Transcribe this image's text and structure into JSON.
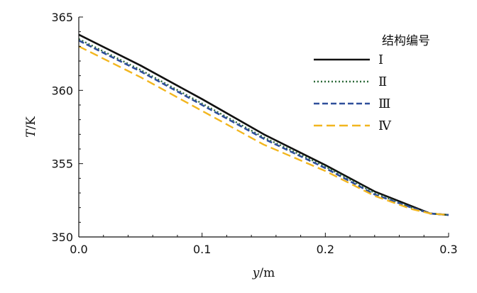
{
  "chart_data": {
    "type": "line",
    "xlabel_var": "y",
    "xlabel_unit": "/m",
    "ylabel_var": "T",
    "ylabel_unit": "/K",
    "xlim": [
      0.0,
      0.3
    ],
    "ylim": [
      350,
      365
    ],
    "x_ticks": [
      0.0,
      0.1,
      0.2,
      0.3
    ],
    "x_tick_labels": [
      "0.0",
      "0.1",
      "0.2",
      "0.3"
    ],
    "y_ticks": [
      350,
      355,
      360,
      365
    ],
    "y_tick_labels": [
      "350",
      "355",
      "360",
      "365"
    ],
    "grid": false,
    "legend": {
      "title": "结构编号",
      "placement": "top-right"
    },
    "series": [
      {
        "name": "Ⅰ",
        "color": "#111111",
        "dash": "solid",
        "x": [
          0.0,
          0.05,
          0.1,
          0.15,
          0.2,
          0.24,
          0.27,
          0.285,
          0.3
        ],
        "y": [
          363.8,
          361.7,
          359.4,
          357.0,
          354.9,
          353.1,
          352.1,
          351.6,
          351.5
        ]
      },
      {
        "name": "Ⅱ",
        "color": "#2e6b3a",
        "dash": "dotted",
        "x": [
          0.0,
          0.05,
          0.1,
          0.15,
          0.2,
          0.24,
          0.27,
          0.285,
          0.3
        ],
        "y": [
          363.5,
          361.4,
          359.1,
          356.8,
          354.8,
          353.0,
          352.0,
          351.6,
          351.5
        ]
      },
      {
        "name": "Ⅲ",
        "color": "#2f4f9a",
        "dash": "dashed",
        "x": [
          0.0,
          0.05,
          0.1,
          0.15,
          0.2,
          0.24,
          0.27,
          0.285,
          0.3
        ],
        "y": [
          363.4,
          361.3,
          359.0,
          356.7,
          354.7,
          352.9,
          352.0,
          351.6,
          351.5
        ]
      },
      {
        "name": "Ⅳ",
        "color": "#f2b61f",
        "dash": "long-dashed",
        "x": [
          0.0,
          0.05,
          0.1,
          0.15,
          0.2,
          0.24,
          0.27,
          0.285,
          0.3
        ],
        "y": [
          363.0,
          360.9,
          358.6,
          356.3,
          354.5,
          352.8,
          351.9,
          351.6,
          351.5
        ]
      }
    ]
  }
}
